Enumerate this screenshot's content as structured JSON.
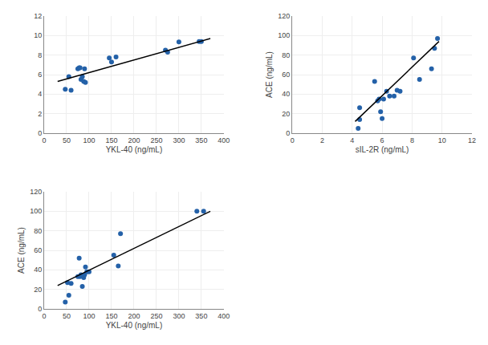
{
  "chart_data": [
    {
      "type": "scatter",
      "xlabel": "YKL-40 (ng/mL)",
      "xlim": [
        0,
        400
      ],
      "ylim": [
        0,
        12
      ],
      "xticks": [
        0,
        50,
        100,
        150,
        200,
        250,
        300,
        350,
        400
      ],
      "yticks": [
        0,
        2,
        4,
        6,
        8,
        10,
        12
      ],
      "grid": true,
      "series": [
        {
          "type": "scatter",
          "marker": "circle",
          "color": "#2461a8",
          "x": [
            47,
            55,
            60,
            75,
            78,
            80,
            82,
            85,
            88,
            90,
            92,
            145,
            150,
            160,
            270,
            275,
            300,
            345,
            350
          ],
          "values": [
            4.5,
            5.8,
            4.4,
            6.6,
            6.7,
            6.7,
            5.5,
            5.8,
            5.3,
            6.6,
            5.2,
            7.7,
            7.3,
            7.8,
            8.5,
            8.3,
            9.35,
            9.4,
            9.4
          ]
        },
        {
          "type": "line",
          "line_style": "solid",
          "color": "#000000",
          "x": [
            30,
            370
          ],
          "values": [
            5.3,
            9.7
          ]
        }
      ]
    },
    {
      "type": "scatter",
      "xlabel": "sIL-2R (ng/mL)",
      "ylabel": "ACE (ng/mL)",
      "xlim": [
        0,
        12
      ],
      "ylim": [
        0,
        120
      ],
      "xticks": [
        0,
        2,
        4,
        6,
        8,
        10,
        12
      ],
      "yticks": [
        0,
        20,
        40,
        60,
        80,
        100,
        120
      ],
      "grid": true,
      "series": [
        {
          "type": "scatter",
          "marker": "circle",
          "color": "#2461a8",
          "x": [
            4.4,
            4.5,
            4.5,
            5.5,
            5.7,
            5.8,
            5.9,
            6.0,
            6.1,
            6.3,
            6.5,
            6.8,
            7.0,
            7.2,
            8.1,
            8.5,
            9.3,
            9.5,
            9.7
          ],
          "values": [
            5,
            26,
            14,
            53,
            33,
            35,
            22,
            15,
            35,
            43,
            38,
            38,
            44,
            43,
            77,
            55,
            66,
            87,
            97
          ]
        },
        {
          "type": "line",
          "line_style": "solid",
          "color": "#000000",
          "x": [
            4.2,
            9.8
          ],
          "values": [
            12,
            94
          ]
        }
      ]
    },
    {
      "type": "scatter",
      "xlabel": "YKL-40 (ng/mL)",
      "ylabel": "ACE (ng/mL)",
      "xlim": [
        0,
        400
      ],
      "ylim": [
        0,
        120
      ],
      "xticks": [
        0,
        50,
        100,
        150,
        200,
        250,
        300,
        350,
        400
      ],
      "yticks": [
        0,
        20,
        40,
        60,
        80,
        100,
        120
      ],
      "grid": true,
      "series": [
        {
          "type": "scatter",
          "marker": "circle",
          "color": "#2461a8",
          "x": [
            47,
            52,
            55,
            60,
            75,
            78,
            80,
            82,
            85,
            88,
            90,
            92,
            95,
            100,
            155,
            165,
            170,
            340,
            355
          ],
          "values": [
            7,
            27,
            14,
            26,
            33,
            52,
            33,
            35,
            23,
            32,
            35,
            43,
            38,
            38,
            55,
            44,
            77,
            100,
            100
          ]
        },
        {
          "type": "line",
          "line_style": "solid",
          "color": "#000000",
          "x": [
            30,
            370
          ],
          "values": [
            24,
            100
          ]
        }
      ]
    }
  ]
}
